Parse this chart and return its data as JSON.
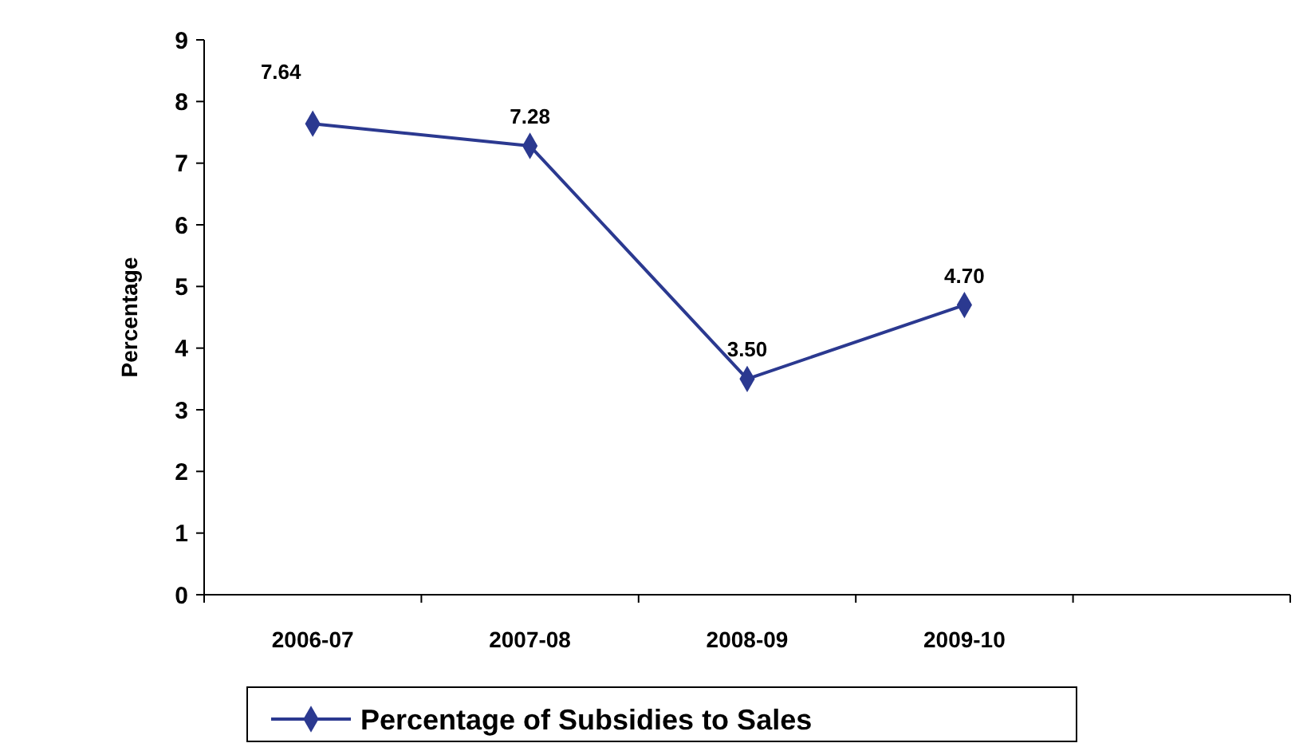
{
  "chart_data": {
    "type": "line",
    "ylabel": "Percentage",
    "categories": [
      "2006-07",
      "2007-08",
      "2008-09",
      "2009-10",
      null
    ],
    "series": [
      {
        "name": "Percentage of Subsidies to Sales",
        "color": "#2b3990",
        "values": [
          7.64,
          7.28,
          3.5,
          4.7,
          null
        ],
        "value_labels": [
          "7.64",
          "7.28",
          "3.50",
          "4.70",
          null
        ]
      }
    ],
    "ylim": [
      0,
      9
    ],
    "yticks": [
      0,
      1,
      2,
      3,
      4,
      5,
      6,
      7,
      8,
      9
    ],
    "grid": false,
    "legend": "bottom",
    "marker": "diamond",
    "line_style": "solid"
  }
}
